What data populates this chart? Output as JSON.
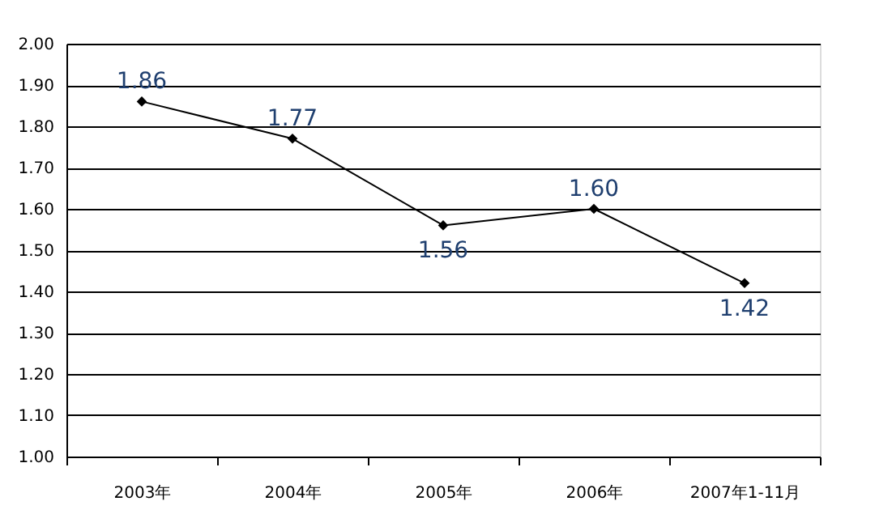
{
  "chart_data": {
    "type": "line",
    "categories": [
      "2003年",
      "2004年",
      "2005年",
      "2006年",
      "2007年1-11月"
    ],
    "series": [
      {
        "color": "#000000",
        "values": [
          1.86,
          1.77,
          1.56,
          1.6,
          1.42
        ],
        "value_labels": [
          "1.86",
          "1.77",
          "1.56",
          "1.60",
          "1.42"
        ]
      }
    ],
    "ylim": [
      1.0,
      2.0
    ],
    "yticks": [
      {
        "value": 1.0,
        "label": "1.00"
      },
      {
        "value": 1.1,
        "label": "1.10"
      },
      {
        "value": 1.2,
        "label": "1.20"
      },
      {
        "value": 1.3,
        "label": "1.30"
      },
      {
        "value": 1.4,
        "label": "1.40"
      },
      {
        "value": 1.5,
        "label": "1.50"
      },
      {
        "value": 1.6,
        "label": "1.60"
      },
      {
        "value": 1.7,
        "label": "1.70"
      },
      {
        "value": 1.8,
        "label": "1.80"
      },
      {
        "value": 1.9,
        "label": "1.90"
      },
      {
        "value": 2.0,
        "label": "2.00"
      }
    ],
    "grid": "y",
    "marker": "diamond",
    "line_style": "solid",
    "legend": false
  }
}
